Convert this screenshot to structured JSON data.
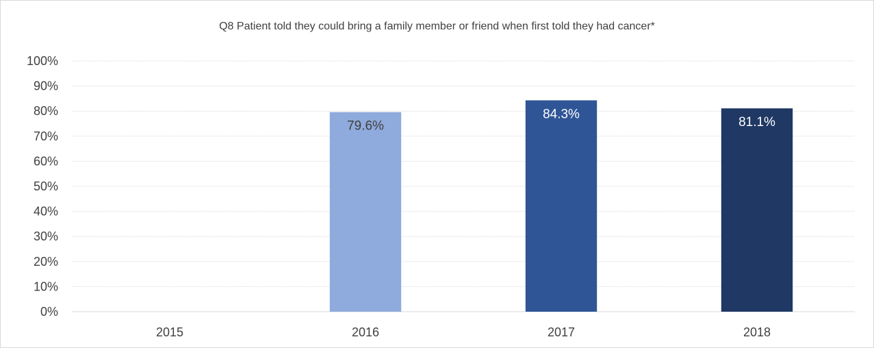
{
  "chart_data": {
    "type": "bar",
    "title": "Q8 Patient told they could bring a family member or friend when first told they had cancer*",
    "xlabel": "",
    "ylabel": "",
    "categories": [
      "2015",
      "2016",
      "2017",
      "2018"
    ],
    "values": [
      null,
      79.6,
      84.3,
      81.1
    ],
    "data_labels": [
      "",
      "79.6%",
      "84.3%",
      "81.1%"
    ],
    "bar_colors": [
      "#8faadc",
      "#8faadc",
      "#2f5597",
      "#1f3864"
    ],
    "label_colors": [
      "#404040",
      "#404040",
      "#ffffff",
      "#ffffff"
    ],
    "ylim": [
      0,
      100
    ],
    "yticks": [
      "0%",
      "10%",
      "20%",
      "30%",
      "40%",
      "50%",
      "60%",
      "70%",
      "80%",
      "90%",
      "100%"
    ],
    "grid": true,
    "legend": "none"
  }
}
